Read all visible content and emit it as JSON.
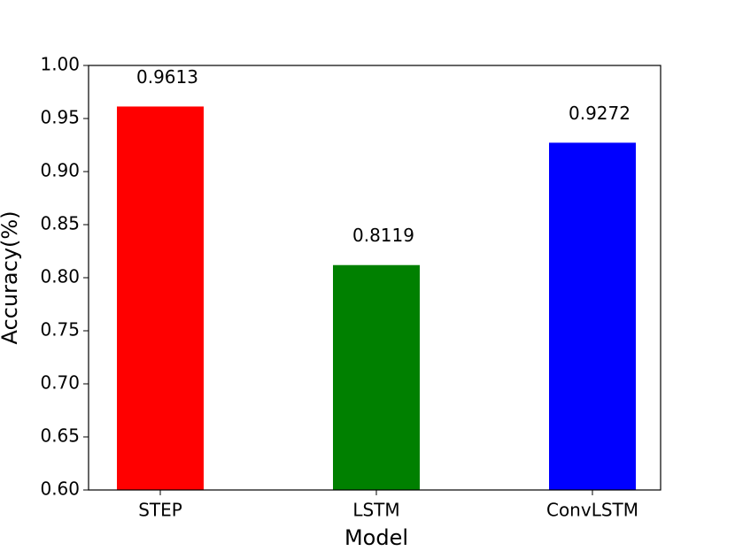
{
  "chart_data": {
    "type": "bar",
    "categories": [
      "STEP",
      "LSTM",
      "ConvLSTM"
    ],
    "values": [
      0.9613,
      0.8119,
      0.9272
    ],
    "colors": [
      "#ff0000",
      "#008000",
      "#0000ff"
    ],
    "xlabel": "Model",
    "ylabel": "Accuracy(%)",
    "ylim": [
      0.6,
      1.0
    ],
    "yticks": [
      {
        "value": 0.6,
        "label": "0.60"
      },
      0.65,
      {
        "value": 0.7,
        "label": "0.70"
      },
      0.75,
      {
        "value": 0.8,
        "label": "0.80"
      },
      0.85,
      {
        "value": 0.9,
        "label": "0.90"
      },
      0.95,
      {
        "value": 1.0,
        "label": "1.00"
      }
    ],
    "grid": false
  }
}
